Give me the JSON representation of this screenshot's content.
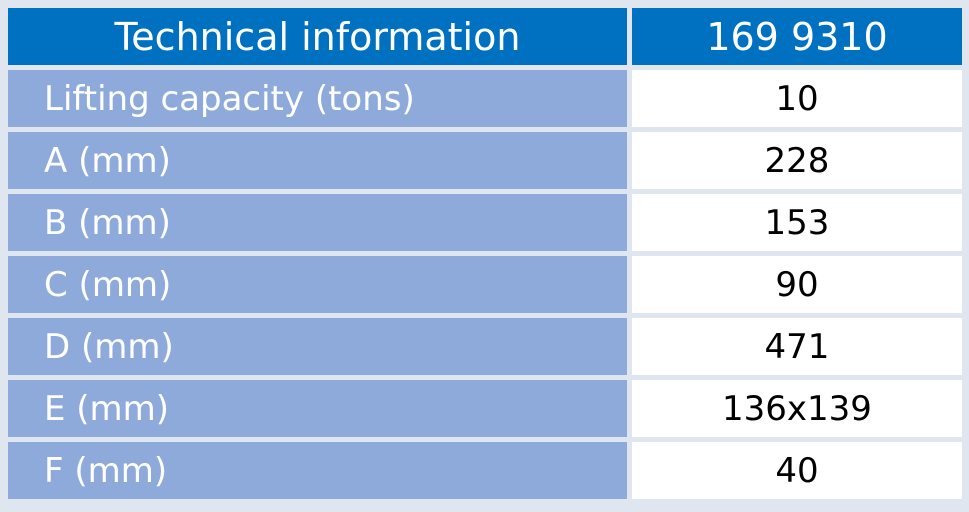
{
  "table": {
    "header": [
      "Technical information",
      "169 9310"
    ],
    "rows": [
      [
        "Lifting capacity (tons)",
        "10"
      ],
      [
        "A (mm)",
        "228"
      ],
      [
        "B (mm)",
        "153"
      ],
      [
        "C (mm)",
        "90"
      ],
      [
        "D (mm)",
        "471"
      ],
      [
        "E (mm)",
        "136x139"
      ],
      [
        "F (mm)",
        "40"
      ]
    ]
  }
}
